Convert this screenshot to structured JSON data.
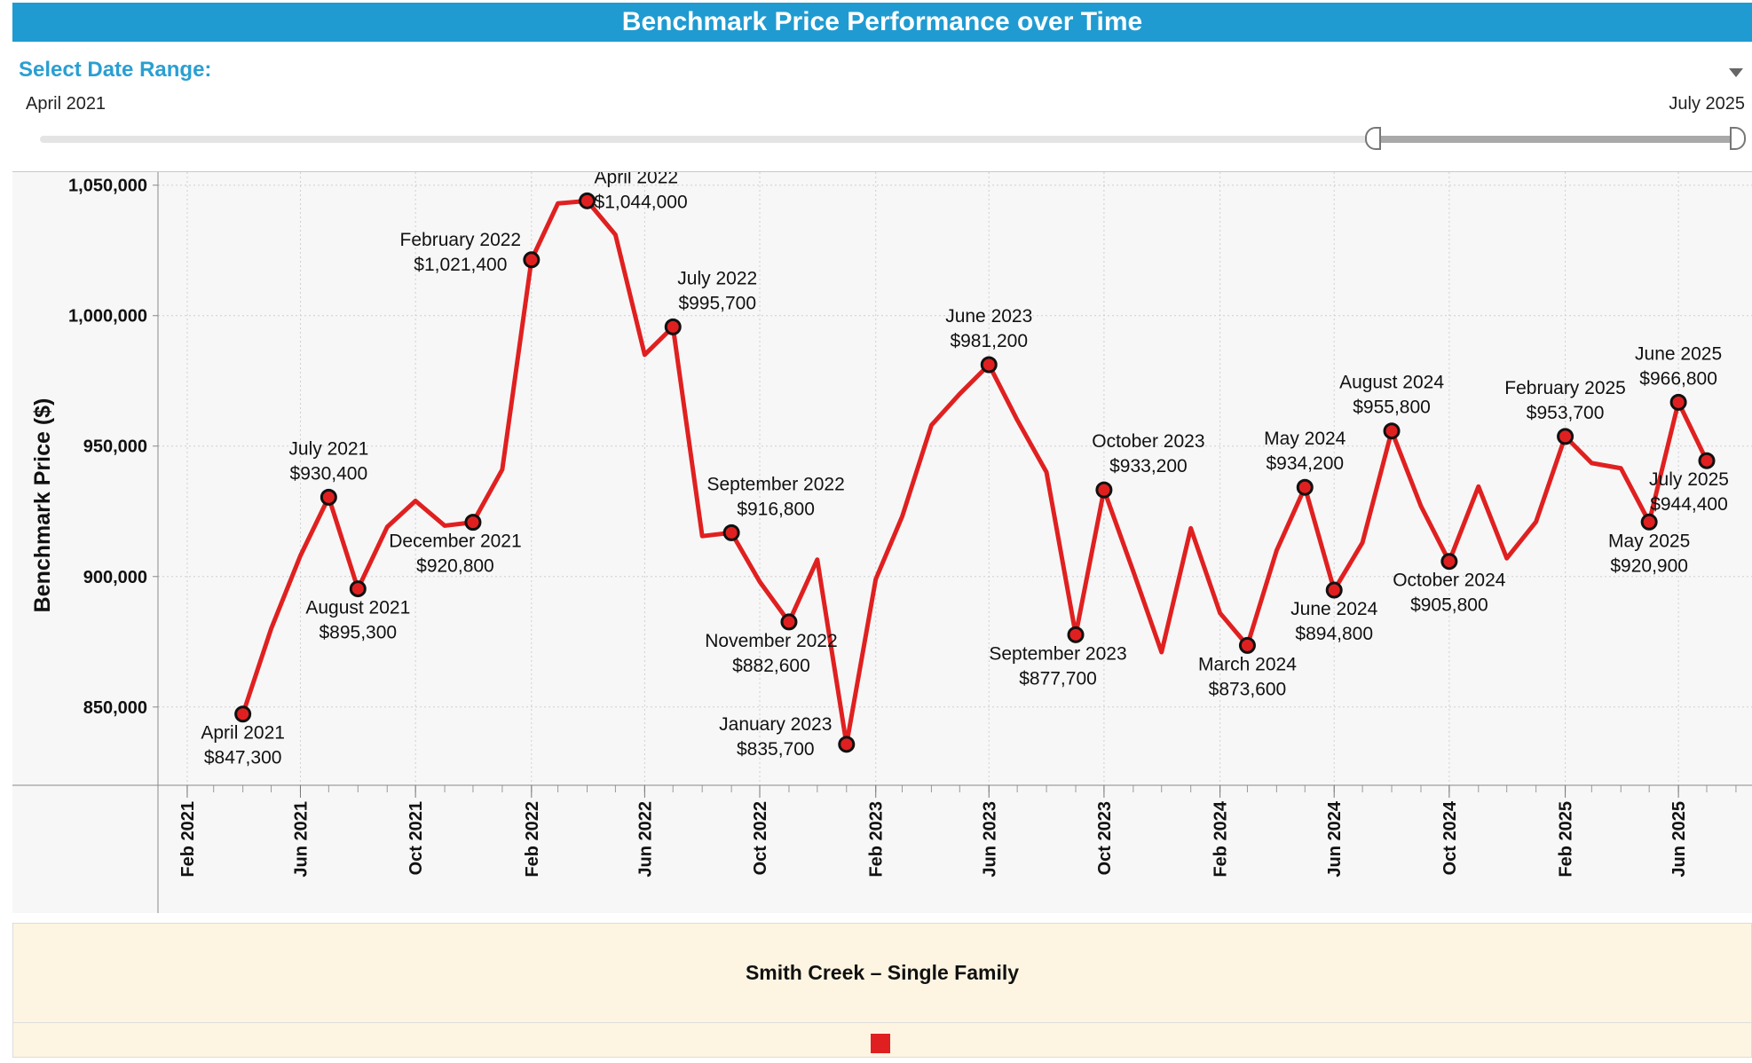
{
  "header": {
    "title": "Benchmark Price Performance over Time"
  },
  "date_range": {
    "label": "Select Date Range:",
    "start": "April 2021",
    "end": "July 2025",
    "selection_start_fraction": 0.787,
    "selection_end_fraction": 1.0
  },
  "legend": {
    "series_name": "Smith Creek – Single Family"
  },
  "colors": {
    "accent": "#1f9bd1",
    "series": "#e02020",
    "legend_bg": "#fdf5e2",
    "plot_bg": "#f7f7f7"
  },
  "chart_data": {
    "type": "line",
    "title": "Benchmark Price Performance over Time",
    "ylabel": "Benchmark Price ($)",
    "xlabel": "",
    "ylim": [
      820000,
      1055000
    ],
    "xlim": [
      "2021-01-15",
      "2025-09-01"
    ],
    "grid": true,
    "y_ticks": [
      850000,
      900000,
      950000,
      1000000,
      1050000
    ],
    "y_tick_labels": [
      "850,000",
      "900,000",
      "950,000",
      "1,000,000",
      "1,050,000"
    ],
    "x_ticks": [
      "2021-02",
      "2021-06",
      "2021-10",
      "2022-02",
      "2022-06",
      "2022-10",
      "2023-02",
      "2023-06",
      "2023-10",
      "2024-02",
      "2024-06",
      "2024-10",
      "2025-02",
      "2025-06"
    ],
    "x_tick_labels": [
      "Feb 2021",
      "Jun 2021",
      "Oct 2021",
      "Feb 2022",
      "Jun 2022",
      "Oct 2022",
      "Feb 2023",
      "Jun 2023",
      "Oct 2023",
      "Feb 2024",
      "Jun 2024",
      "Oct 2024",
      "Feb 2025",
      "Jun 2025"
    ],
    "series": [
      {
        "name": "Smith Creek – Single Family",
        "color": "#e02020",
        "points": [
          {
            "x": "2021-04",
            "y": 847300,
            "label": "April 2021",
            "value_label": "$847,300",
            "label_pos": "below"
          },
          {
            "x": "2021-05",
            "y": 880000
          },
          {
            "x": "2021-06",
            "y": 908000
          },
          {
            "x": "2021-07",
            "y": 930400,
            "label": "July 2021",
            "value_label": "$930,400",
            "label_pos": "above"
          },
          {
            "x": "2021-08",
            "y": 895300,
            "label": "August 2021",
            "value_label": "$895,300",
            "label_pos": "below"
          },
          {
            "x": "2021-09",
            "y": 919000
          },
          {
            "x": "2021-10",
            "y": 929000
          },
          {
            "x": "2021-11",
            "y": 919500
          },
          {
            "x": "2021-12",
            "y": 920800,
            "label": "December 2021",
            "value_label": "$920,800",
            "label_pos": "below-right"
          },
          {
            "x": "2022-01",
            "y": 941000
          },
          {
            "x": "2022-02",
            "y": 1021400,
            "label": "February 2022",
            "value_label": "$1,021,400",
            "label_pos": "left"
          },
          {
            "x": "2022-03",
            "y": 1043000
          },
          {
            "x": "2022-04",
            "y": 1044000,
            "label": "April 2022",
            "value_label": "$1,044,000",
            "label_pos": "right"
          },
          {
            "x": "2022-05",
            "y": 1031000
          },
          {
            "x": "2022-06",
            "y": 985000
          },
          {
            "x": "2022-07",
            "y": 995700,
            "label": "July 2022",
            "value_label": "$995,700",
            "label_pos": "above-right"
          },
          {
            "x": "2022-08",
            "y": 915500
          },
          {
            "x": "2022-09",
            "y": 916800,
            "label": "September 2022",
            "value_label": "$916,800",
            "label_pos": "above-right"
          },
          {
            "x": "2022-10",
            "y": 898000
          },
          {
            "x": "2022-11",
            "y": 882600,
            "label": "November 2022",
            "value_label": "$882,600",
            "label_pos": "below-left"
          },
          {
            "x": "2022-12",
            "y": 906500
          },
          {
            "x": "2023-01",
            "y": 835700,
            "label": "January 2023",
            "value_label": "$835,700",
            "label_pos": "left"
          },
          {
            "x": "2023-02",
            "y": 899000
          },
          {
            "x": "2023-03",
            "y": 923000
          },
          {
            "x": "2023-04",
            "y": 958000
          },
          {
            "x": "2023-05",
            "y": 970000
          },
          {
            "x": "2023-06",
            "y": 981200,
            "label": "June 2023",
            "value_label": "$981,200",
            "label_pos": "above"
          },
          {
            "x": "2023-07",
            "y": 960000
          },
          {
            "x": "2023-08",
            "y": 940000
          },
          {
            "x": "2023-09",
            "y": 877700,
            "label": "September 2023",
            "value_label": "$877,700",
            "label_pos": "below-left"
          },
          {
            "x": "2023-10",
            "y": 933200,
            "label": "October 2023",
            "value_label": "$933,200",
            "label_pos": "above-right"
          },
          {
            "x": "2023-11",
            "y": 902000
          },
          {
            "x": "2023-12",
            "y": 871000
          },
          {
            "x": "2024-01",
            "y": 918500
          },
          {
            "x": "2024-02",
            "y": 886000
          },
          {
            "x": "2024-03",
            "y": 873600,
            "label": "March 2024",
            "value_label": "$873,600",
            "label_pos": "below"
          },
          {
            "x": "2024-04",
            "y": 910000
          },
          {
            "x": "2024-05",
            "y": 934200,
            "label": "May 2024",
            "value_label": "$934,200",
            "label_pos": "above"
          },
          {
            "x": "2024-06",
            "y": 894800,
            "label": "June 2024",
            "value_label": "$894,800",
            "label_pos": "below"
          },
          {
            "x": "2024-07",
            "y": 913000
          },
          {
            "x": "2024-08",
            "y": 955800,
            "label": "August 2024",
            "value_label": "$955,800",
            "label_pos": "above"
          },
          {
            "x": "2024-09",
            "y": 927000
          },
          {
            "x": "2024-10",
            "y": 905800,
            "label": "October 2024",
            "value_label": "$905,800",
            "label_pos": "below"
          },
          {
            "x": "2024-11",
            "y": 934500
          },
          {
            "x": "2024-12",
            "y": 907000
          },
          {
            "x": "2025-01",
            "y": 921000
          },
          {
            "x": "2025-02",
            "y": 953700,
            "label": "February 2025",
            "value_label": "$953,700",
            "label_pos": "above"
          },
          {
            "x": "2025-03",
            "y": 943500
          },
          {
            "x": "2025-04",
            "y": 941500
          },
          {
            "x": "2025-05",
            "y": 920900,
            "label": "May 2025",
            "value_label": "$920,900",
            "label_pos": "below"
          },
          {
            "x": "2025-06",
            "y": 966800,
            "label": "June 2025",
            "value_label": "$966,800",
            "label_pos": "above"
          },
          {
            "x": "2025-07",
            "y": 944400,
            "label": "July 2025",
            "value_label": "$944,400",
            "label_pos": "below-right"
          }
        ]
      }
    ]
  }
}
